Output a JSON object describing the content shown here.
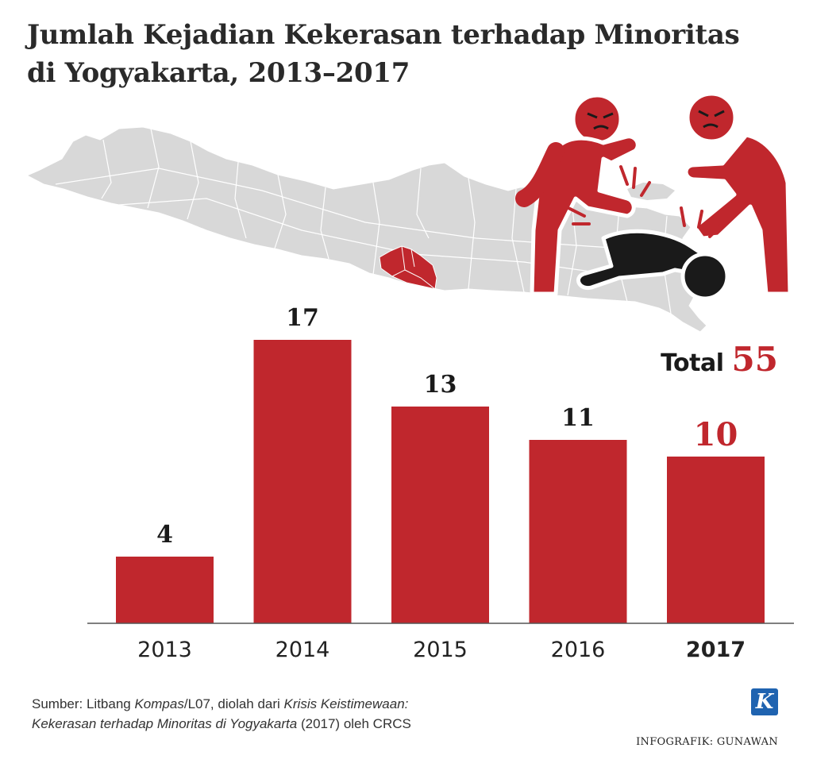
{
  "title": {
    "line1": "Jumlah Kejadian Kekerasan terhadap Minoritas",
    "line2": "di Yogyakarta, 2013–2017"
  },
  "total": {
    "label": "Total",
    "value": "55"
  },
  "colors": {
    "bar": "#c0272d",
    "highlight": "#c0272d",
    "map": "#d8d8d8",
    "map_highlight": "#c0272d",
    "figure_dark": "#1a1a1a"
  },
  "illustration": {
    "map_region": "Pulau Jawa",
    "highlighted_region": "DI Yogyakarta",
    "icon": "violence-illustration"
  },
  "chart_data": {
    "type": "bar",
    "categories": [
      "2013",
      "2014",
      "2015",
      "2016",
      "2017"
    ],
    "values": [
      4,
      17,
      13,
      11,
      10
    ],
    "highlight_category": "2017",
    "value_labels": [
      "4",
      "17",
      "13",
      "11",
      "10"
    ],
    "ylim": [
      0,
      17
    ],
    "grid": false,
    "legend": "none"
  },
  "source": {
    "prefix": "Sumber: Litbang ",
    "kompas": "Kompas",
    "part2": "/L07, diolah dari ",
    "book1": "Krisis Keistimewaan:",
    "book2": "Kekerasan terhadap Minoritas di Yogyakarta",
    "suffix": " (2017) oleh CRCS"
  },
  "logo": "K",
  "credit": "INFOGRAFIK: GUNAWAN"
}
